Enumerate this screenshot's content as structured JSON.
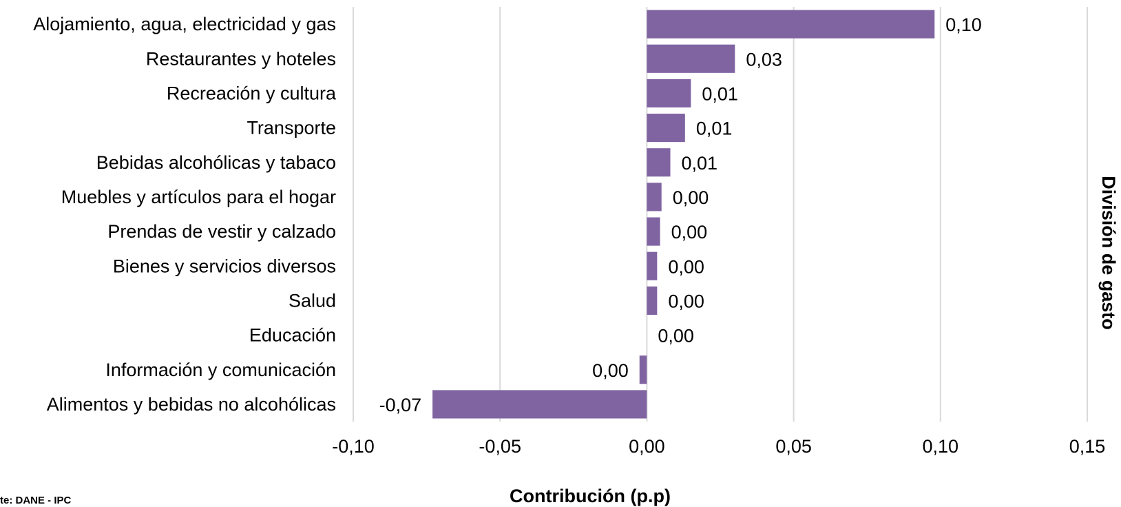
{
  "chart_data": {
    "type": "bar",
    "orientation": "horizontal",
    "categories": [
      "Alojamiento, agua, electricidad y gas",
      "Restaurantes y hoteles",
      "Recreación y cultura",
      "Transporte",
      "Bebidas alcohólicas y tabaco",
      "Muebles y artículos para el hogar",
      "Prendas de vestir y calzado",
      "Bienes y servicios diversos",
      "Salud",
      "Educación",
      "Información y comunicación",
      "Alimentos y bebidas no alcohólicas"
    ],
    "values": [
      0.098,
      0.03,
      0.015,
      0.013,
      0.008,
      0.005,
      0.0045,
      0.0035,
      0.0035,
      0.0,
      -0.0025,
      -0.073
    ],
    "data_labels": [
      "0,10",
      "0,03",
      "0,01",
      "0,01",
      "0,01",
      "0,00",
      "0,00",
      "0,00",
      "0,00",
      "0,00",
      "0,00",
      "-0,07"
    ],
    "xlim": [
      -0.1,
      0.15
    ],
    "xticks": [
      -0.1,
      -0.05,
      0.0,
      0.05,
      0.1,
      0.15
    ],
    "xtick_labels": [
      "-0,10",
      "-0,05",
      "0,00",
      "0,05",
      "0,10",
      "0,15"
    ],
    "xlabel": "Contribución (p.p)",
    "ylabel": "División de gasto",
    "bar_color": "#8064a2",
    "grid": "vertical",
    "source": "te: DANE - IPC"
  }
}
